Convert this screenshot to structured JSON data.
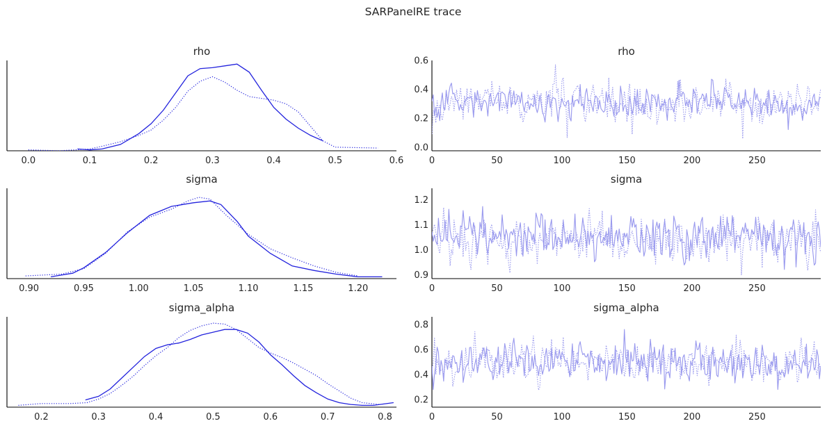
{
  "figure": {
    "title": "SARPanelRE trace"
  },
  "colors": {
    "kde": "#2222dd",
    "trace": "#9a9aee",
    "axis": "#000000",
    "text": "#262626"
  },
  "chart_data": [
    {
      "type": "line",
      "panel": "density",
      "title": "rho",
      "xlim": [
        -0.035,
        0.6
      ],
      "ylim": [
        0,
        1
      ],
      "xticks": [
        0.0,
        0.1,
        0.2,
        0.3,
        0.4,
        0.5,
        0.6
      ],
      "xtick_labels": [
        "0.0",
        "0.1",
        "0.2",
        "0.3",
        "0.4",
        "0.5",
        "0.6"
      ],
      "series": [
        {
          "style": "solid",
          "x": [
            0.08,
            0.1,
            0.12,
            0.15,
            0.18,
            0.2,
            0.22,
            0.24,
            0.26,
            0.28,
            0.3,
            0.32,
            0.34,
            0.36,
            0.38,
            0.4,
            0.42,
            0.44,
            0.46,
            0.48
          ],
          "y": [
            0.02,
            0.01,
            0.02,
            0.07,
            0.19,
            0.3,
            0.45,
            0.64,
            0.83,
            0.91,
            0.92,
            0.94,
            0.96,
            0.87,
            0.67,
            0.48,
            0.35,
            0.25,
            0.17,
            0.11
          ]
        },
        {
          "style": "dotted",
          "x": [
            0.0,
            0.05,
            0.1,
            0.12,
            0.15,
            0.18,
            0.2,
            0.22,
            0.24,
            0.26,
            0.28,
            0.3,
            0.32,
            0.34,
            0.36,
            0.38,
            0.4,
            0.42,
            0.44,
            0.46,
            0.48,
            0.5,
            0.57
          ],
          "y": [
            0.01,
            0.0,
            0.02,
            0.05,
            0.1,
            0.17,
            0.23,
            0.34,
            0.48,
            0.66,
            0.77,
            0.82,
            0.76,
            0.67,
            0.6,
            0.58,
            0.56,
            0.52,
            0.43,
            0.27,
            0.11,
            0.04,
            0.03
          ]
        }
      ]
    },
    {
      "type": "line",
      "panel": "trace",
      "title": "rho",
      "xlim": [
        0,
        299
      ],
      "ylim": [
        -0.025,
        0.6
      ],
      "xticks": [
        0,
        50,
        100,
        150,
        200,
        250
      ],
      "xtick_labels": [
        "0",
        "50",
        "100",
        "150",
        "200",
        "250"
      ],
      "yticks": [
        0.0,
        0.2,
        0.4,
        0.6
      ],
      "ytick_labels": [
        "0.0",
        "0.2",
        "0.4",
        "0.6"
      ],
      "series": [
        {
          "style": "solid",
          "mean": 0.31,
          "sd": 0.055,
          "min": 0.09,
          "max": 0.47,
          "points": 300
        },
        {
          "style": "dotted",
          "mean": 0.3,
          "sd": 0.075,
          "min": 0.0,
          "max": 0.57,
          "points": 300
        }
      ]
    },
    {
      "type": "line",
      "panel": "density",
      "title": "sigma",
      "xlim": [
        0.88,
        1.235
      ],
      "ylim": [
        0,
        1
      ],
      "xticks": [
        0.9,
        0.95,
        1.0,
        1.05,
        1.1,
        1.15,
        1.2
      ],
      "xtick_labels": [
        "0.90",
        "0.95",
        "1.00",
        "1.05",
        "1.10",
        "1.15",
        "1.20"
      ],
      "series": [
        {
          "style": "solid",
          "x": [
            0.92,
            0.94,
            0.95,
            0.97,
            0.99,
            1.01,
            1.03,
            1.05,
            1.065,
            1.075,
            1.09,
            1.1,
            1.12,
            1.14,
            1.16,
            1.18,
            1.2,
            1.222
          ],
          "y": [
            0.02,
            0.06,
            0.12,
            0.29,
            0.51,
            0.7,
            0.8,
            0.84,
            0.86,
            0.82,
            0.63,
            0.47,
            0.28,
            0.14,
            0.09,
            0.05,
            0.02,
            0.02
          ]
        },
        {
          "style": "dotted",
          "x": [
            0.897,
            0.93,
            0.95,
            0.97,
            0.99,
            1.01,
            1.03,
            1.045,
            1.055,
            1.065,
            1.08,
            1.1,
            1.12,
            1.14,
            1.16,
            1.18,
            1.2
          ],
          "y": [
            0.03,
            0.05,
            0.11,
            0.28,
            0.52,
            0.68,
            0.77,
            0.86,
            0.9,
            0.88,
            0.7,
            0.49,
            0.33,
            0.23,
            0.14,
            0.07,
            0.03
          ]
        }
      ]
    },
    {
      "type": "line",
      "panel": "trace",
      "title": "sigma",
      "xlim": [
        0,
        299
      ],
      "ylim": [
        0.885,
        1.245
      ],
      "xticks": [
        0,
        50,
        100,
        150,
        200,
        250
      ],
      "xtick_labels": [
        "0",
        "50",
        "100",
        "150",
        "200",
        "250"
      ],
      "yticks": [
        0.9,
        1.0,
        1.1,
        1.2
      ],
      "ytick_labels": [
        "0.9",
        "1.0",
        "1.1",
        "1.2"
      ],
      "series": [
        {
          "style": "solid",
          "mean": 1.05,
          "sd": 0.045,
          "min": 0.92,
          "max": 1.22,
          "points": 300
        },
        {
          "style": "dotted",
          "mean": 1.045,
          "sd": 0.048,
          "min": 0.9,
          "max": 1.2,
          "points": 300
        }
      ]
    },
    {
      "type": "line",
      "panel": "density",
      "title": "sigma_alpha",
      "xlim": [
        0.14,
        0.82
      ],
      "ylim": [
        0,
        1
      ],
      "xticks": [
        0.2,
        0.3,
        0.4,
        0.5,
        0.6,
        0.7,
        0.8
      ],
      "xtick_labels": [
        "0.2",
        "0.3",
        "0.4",
        "0.5",
        "0.6",
        "0.7",
        "0.8"
      ],
      "series": [
        {
          "style": "solid",
          "x": [
            0.277,
            0.3,
            0.32,
            0.34,
            0.36,
            0.38,
            0.4,
            0.42,
            0.44,
            0.46,
            0.48,
            0.5,
            0.52,
            0.54,
            0.56,
            0.58,
            0.6,
            0.62,
            0.64,
            0.66,
            0.68,
            0.7,
            0.72,
            0.74,
            0.76,
            0.78,
            0.815
          ],
          "y": [
            0.08,
            0.12,
            0.2,
            0.32,
            0.44,
            0.56,
            0.65,
            0.69,
            0.71,
            0.75,
            0.8,
            0.83,
            0.86,
            0.86,
            0.82,
            0.72,
            0.58,
            0.47,
            0.35,
            0.24,
            0.16,
            0.09,
            0.05,
            0.03,
            0.02,
            0.02,
            0.05
          ]
        },
        {
          "style": "dotted",
          "x": [
            0.16,
            0.2,
            0.25,
            0.28,
            0.3,
            0.32,
            0.34,
            0.36,
            0.38,
            0.4,
            0.42,
            0.44,
            0.46,
            0.48,
            0.5,
            0.52,
            0.54,
            0.56,
            0.58,
            0.6,
            0.62,
            0.64,
            0.66,
            0.68,
            0.7,
            0.72,
            0.74,
            0.76,
            0.79
          ],
          "y": [
            0.02,
            0.04,
            0.04,
            0.05,
            0.09,
            0.15,
            0.24,
            0.34,
            0.46,
            0.57,
            0.66,
            0.77,
            0.85,
            0.9,
            0.93,
            0.92,
            0.86,
            0.76,
            0.66,
            0.6,
            0.55,
            0.49,
            0.42,
            0.35,
            0.26,
            0.18,
            0.1,
            0.05,
            0.03
          ]
        }
      ]
    },
    {
      "type": "line",
      "panel": "trace",
      "title": "sigma_alpha",
      "xlim": [
        0,
        299
      ],
      "ylim": [
        0.14,
        0.86
      ],
      "xticks": [
        0,
        50,
        100,
        150,
        200,
        250
      ],
      "xtick_labels": [
        "0",
        "50",
        "100",
        "150",
        "200",
        "250"
      ],
      "yticks": [
        0.2,
        0.4,
        0.6,
        0.8
      ],
      "ytick_labels": [
        "0.2",
        "0.4",
        "0.6",
        "0.8"
      ],
      "series": [
        {
          "style": "solid",
          "mean": 0.5,
          "sd": 0.085,
          "min": 0.28,
          "max": 0.82,
          "points": 300
        },
        {
          "style": "dotted",
          "mean": 0.51,
          "sd": 0.08,
          "min": 0.18,
          "max": 0.79,
          "points": 300
        }
      ]
    }
  ]
}
